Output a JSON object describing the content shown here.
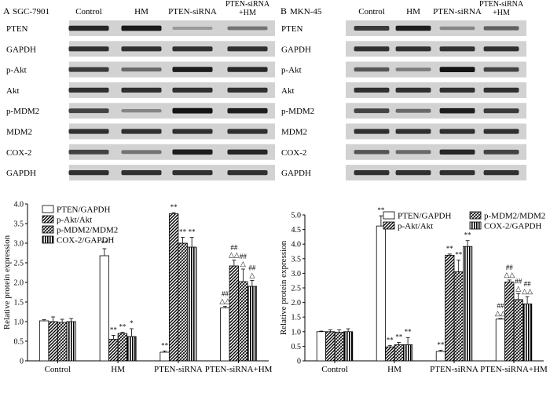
{
  "panels": [
    {
      "letter": "A",
      "cell_line": "SGC-7901",
      "lanes": [
        "Control",
        "HM",
        "PTEN-siRNA",
        "PTEN-siRNA\n+HM"
      ],
      "blots": [
        {
          "label": "PTEN",
          "intensity": [
            0.85,
            0.92,
            0.25,
            0.45
          ]
        },
        {
          "label": "GAPDH",
          "intensity": [
            0.8,
            0.8,
            0.8,
            0.8
          ]
        },
        {
          "label": "p-Akt",
          "intensity": [
            0.75,
            0.5,
            0.9,
            0.85
          ]
        },
        {
          "label": "Akt",
          "intensity": [
            0.8,
            0.8,
            0.8,
            0.8
          ]
        },
        {
          "label": "p-MDM2",
          "intensity": [
            0.7,
            0.35,
            0.95,
            0.9
          ]
        },
        {
          "label": "MDM2",
          "intensity": [
            0.8,
            0.8,
            0.8,
            0.8
          ]
        },
        {
          "label": "COX-2",
          "intensity": [
            0.7,
            0.45,
            0.9,
            0.85
          ]
        },
        {
          "label": "GAPDH",
          "intensity": [
            0.8,
            0.8,
            0.8,
            0.8
          ]
        }
      ]
    },
    {
      "letter": "B",
      "cell_line": "MKN-45",
      "lanes": [
        "Control",
        "HM",
        "PTEN-siRNA",
        "PTEN-siRNA\n+HM"
      ],
      "blots": [
        {
          "label": "PTEN",
          "intensity": [
            0.75,
            0.9,
            0.35,
            0.55
          ]
        },
        {
          "label": "GAPDH",
          "intensity": [
            0.8,
            0.8,
            0.8,
            0.8
          ]
        },
        {
          "label": "p-Akt",
          "intensity": [
            0.6,
            0.4,
            0.95,
            0.7
          ]
        },
        {
          "label": "Akt",
          "intensity": [
            0.8,
            0.8,
            0.8,
            0.8
          ]
        },
        {
          "label": "p-MDM2",
          "intensity": [
            0.7,
            0.5,
            0.9,
            0.75
          ]
        },
        {
          "label": "MDM2",
          "intensity": [
            0.8,
            0.8,
            0.8,
            0.8
          ]
        },
        {
          "label": "COX-2",
          "intensity": [
            0.6,
            0.5,
            0.85,
            0.7
          ]
        },
        {
          "label": "GAPDH",
          "intensity": [
            0.8,
            0.8,
            0.8,
            0.8
          ]
        }
      ]
    }
  ],
  "chart_data": [
    {
      "type": "bar",
      "ylabel": "Relative protein expression",
      "ylim": [
        0,
        4.0
      ],
      "yticks": [
        "0",
        "0.5",
        "1.0",
        "1.5",
        "2.0",
        "2.5",
        "3.0",
        "3.5",
        "4.0"
      ],
      "categories": [
        "Control",
        "HM",
        "PTEN-siRNA",
        "PTEN-siRNA+HM"
      ],
      "legend_position": "top-left",
      "series": [
        {
          "name": "PTEN/GAPDH",
          "pattern": "white",
          "values": [
            1.02,
            2.68,
            0.22,
            1.35
          ],
          "errors": [
            0.03,
            0.18,
            0.03,
            0.04
          ]
        },
        {
          "name": "p-Akt/Akt",
          "pattern": "hatch",
          "values": [
            1.0,
            0.55,
            3.75,
            2.42
          ],
          "errors": [
            0.12,
            0.1,
            0.03,
            0.15
          ]
        },
        {
          "name": "p-MDM2/MDM2",
          "pattern": "crosshatch",
          "values": [
            0.98,
            0.7,
            3.0,
            2.02
          ],
          "errors": [
            0.08,
            0.03,
            0.15,
            0.32
          ]
        },
        {
          "name": "COX-2/GAPDH",
          "pattern": "vertical",
          "values": [
            1.0,
            0.62,
            2.9,
            1.9
          ],
          "errors": [
            0.08,
            0.2,
            0.25,
            0.15
          ]
        }
      ],
      "annotations": [
        {
          "category": 1,
          "series": 0,
          "marks": [
            "**"
          ]
        },
        {
          "category": 1,
          "series": 1,
          "marks": [
            "**"
          ]
        },
        {
          "category": 1,
          "series": 2,
          "marks": [
            "**"
          ]
        },
        {
          "category": 1,
          "series": 3,
          "marks": [
            "*"
          ]
        },
        {
          "category": 2,
          "series": 0,
          "marks": [
            "**"
          ]
        },
        {
          "category": 2,
          "series": 1,
          "marks": [
            "**"
          ]
        },
        {
          "category": 2,
          "series": 2,
          "marks": [
            "**"
          ]
        },
        {
          "category": 2,
          "series": 3,
          "marks": [
            "**"
          ]
        },
        {
          "category": 3,
          "series": 0,
          "marks": [
            "##",
            "△△"
          ]
        },
        {
          "category": 3,
          "series": 1,
          "marks": [
            "##",
            "△△"
          ]
        },
        {
          "category": 3,
          "series": 2,
          "marks": [
            "##",
            "△"
          ]
        },
        {
          "category": 3,
          "series": 3,
          "marks": [
            "##",
            "△"
          ]
        }
      ]
    },
    {
      "type": "bar",
      "ylabel": "Relative protein expression",
      "ylim": [
        0,
        5.0
      ],
      "yticks": [
        "0",
        "0.5",
        "1.0",
        "1.5",
        "2.0",
        "2.5",
        "3.0",
        "3.5",
        "4.0",
        "4.5",
        "5.0"
      ],
      "categories": [
        "Control",
        "HM",
        "PTEN-siRNA",
        "PTEN-siRNA+HM"
      ],
      "legend_position": "top-right",
      "series": [
        {
          "name": "PTEN/GAPDH",
          "pattern": "white",
          "values": [
            1.0,
            4.62,
            0.32,
            1.43
          ],
          "errors": [
            0.02,
            0.35,
            0.04,
            0.02
          ]
        },
        {
          "name": "p-Akt/Akt",
          "pattern": "hatch",
          "values": [
            1.0,
            0.48,
            3.62,
            2.7
          ],
          "errors": [
            0.06,
            0.05,
            0.04,
            0.07
          ]
        },
        {
          "name": "p-MDM2/MDM2",
          "pattern": "crosshatch",
          "values": [
            0.98,
            0.55,
            3.05,
            2.1
          ],
          "errors": [
            0.08,
            0.08,
            0.4,
            0.2
          ]
        },
        {
          "name": "COX-2/GAPDH",
          "pattern": "vertical",
          "values": [
            1.0,
            0.55,
            3.92,
            1.95
          ],
          "errors": [
            0.1,
            0.25,
            0.2,
            0.25
          ]
        }
      ],
      "annotations": [
        {
          "category": 1,
          "series": 0,
          "marks": [
            "**"
          ]
        },
        {
          "category": 1,
          "series": 1,
          "marks": [
            "**"
          ]
        },
        {
          "category": 1,
          "series": 2,
          "marks": [
            "**"
          ]
        },
        {
          "category": 1,
          "series": 3,
          "marks": [
            "**"
          ]
        },
        {
          "category": 2,
          "series": 0,
          "marks": [
            "**"
          ]
        },
        {
          "category": 2,
          "series": 1,
          "marks": [
            "**"
          ]
        },
        {
          "category": 2,
          "series": 2,
          "marks": [
            "**"
          ]
        },
        {
          "category": 2,
          "series": 3,
          "marks": [
            "**"
          ]
        },
        {
          "category": 3,
          "series": 0,
          "marks": [
            "##",
            "△△"
          ]
        },
        {
          "category": 3,
          "series": 1,
          "marks": [
            "##",
            "△△"
          ]
        },
        {
          "category": 3,
          "series": 2,
          "marks": [
            "##",
            "△"
          ]
        },
        {
          "category": 3,
          "series": 3,
          "marks": [
            "##",
            "△△"
          ]
        }
      ]
    }
  ]
}
